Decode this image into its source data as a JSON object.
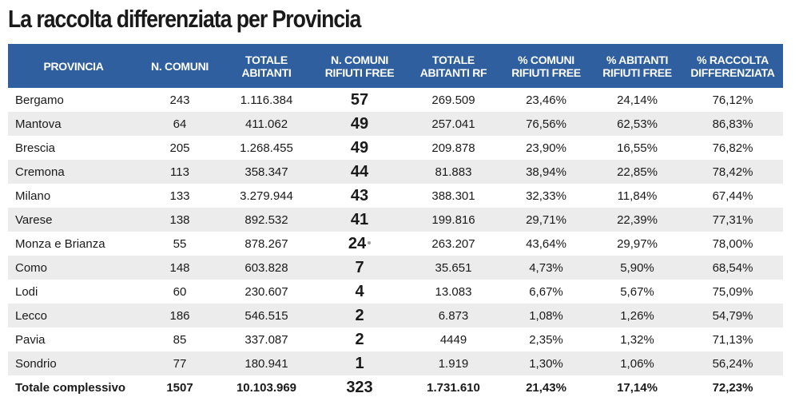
{
  "title": "La raccolta differenziata per Provincia",
  "headers": [
    "PROVINCIA",
    "N. COMUNI",
    "TOTALE\nABITANTI",
    "N. COMUNI\nRIFIUTI FREE",
    "TOTALE\nABITANTI RF",
    "% COMUNI\nRIFIUTI FREE",
    "% ABITANTI\nRIFIUTI FREE",
    "% RACCOLTA\nDIFFERENZIATA"
  ],
  "rows": [
    {
      "provincia": "Bergamo",
      "n_comuni": "243",
      "totale_abitanti": "1.116.384",
      "n_comuni_rf": "57",
      "totale_abitanti_rf": "269.509",
      "pct_comuni_rf": "23,46%",
      "pct_abitanti_rf": "24,14%",
      "pct_raccolta": "76,12%"
    },
    {
      "provincia": "Mantova",
      "n_comuni": "64",
      "totale_abitanti": "411.062",
      "n_comuni_rf": "49",
      "totale_abitanti_rf": "257.041",
      "pct_comuni_rf": "76,56%",
      "pct_abitanti_rf": "62,53%",
      "pct_raccolta": "86,83%"
    },
    {
      "provincia": "Brescia",
      "n_comuni": "205",
      "totale_abitanti": "1.268.455",
      "n_comuni_rf": "49",
      "totale_abitanti_rf": "209.878",
      "pct_comuni_rf": "23,90%",
      "pct_abitanti_rf": "16,55%",
      "pct_raccolta": "76,82%"
    },
    {
      "provincia": "Cremona",
      "n_comuni": "113",
      "totale_abitanti": "358.347",
      "n_comuni_rf": "44",
      "totale_abitanti_rf": "81.883",
      "pct_comuni_rf": "38,94%",
      "pct_abitanti_rf": "22,85%",
      "pct_raccolta": "78,42%"
    },
    {
      "provincia": "Milano",
      "n_comuni": "133",
      "totale_abitanti": "3.279.944",
      "n_comuni_rf": "43",
      "totale_abitanti_rf": "388.301",
      "pct_comuni_rf": "32,33%",
      "pct_abitanti_rf": "11,84%",
      "pct_raccolta": "67,44%"
    },
    {
      "provincia": "Varese",
      "n_comuni": "138",
      "totale_abitanti": "892.532",
      "n_comuni_rf": "41",
      "totale_abitanti_rf": "199.816",
      "pct_comuni_rf": "29,71%",
      "pct_abitanti_rf": "22,39%",
      "pct_raccolta": "77,31%"
    },
    {
      "provincia": "Monza e Brianza",
      "n_comuni": "55",
      "totale_abitanti": "878.267",
      "n_comuni_rf": "24",
      "marker": true,
      "totale_abitanti_rf": "263.207",
      "pct_comuni_rf": "43,64%",
      "pct_abitanti_rf": "29,97%",
      "pct_raccolta": "78,00%"
    },
    {
      "provincia": "Como",
      "n_comuni": "148",
      "totale_abitanti": "603.828",
      "n_comuni_rf": "7",
      "totale_abitanti_rf": "35.651",
      "pct_comuni_rf": "4,73%",
      "pct_abitanti_rf": "5,90%",
      "pct_raccolta": "68,54%"
    },
    {
      "provincia": "Lodi",
      "n_comuni": "60",
      "totale_abitanti": "230.607",
      "n_comuni_rf": "4",
      "totale_abitanti_rf": "13.083",
      "pct_comuni_rf": "6,67%",
      "pct_abitanti_rf": "5,67%",
      "pct_raccolta": "75,09%"
    },
    {
      "provincia": "Lecco",
      "n_comuni": "186",
      "totale_abitanti": "546.515",
      "n_comuni_rf": "2",
      "totale_abitanti_rf": "6.873",
      "pct_comuni_rf": "1,08%",
      "pct_abitanti_rf": "1,26%",
      "pct_raccolta": "54,79%"
    },
    {
      "provincia": "Pavia",
      "n_comuni": "85",
      "totale_abitanti": "337.087",
      "n_comuni_rf": "2",
      "totale_abitanti_rf": "4449",
      "pct_comuni_rf": "2,35%",
      "pct_abitanti_rf": "1,32%",
      "pct_raccolta": "71,13%"
    },
    {
      "provincia": "Sondrio",
      "n_comuni": "77",
      "totale_abitanti": "180.941",
      "n_comuni_rf": "1",
      "totale_abitanti_rf": "1.919",
      "pct_comuni_rf": "1,30%",
      "pct_abitanti_rf": "1,06%",
      "pct_raccolta": "56,24%"
    }
  ],
  "total": {
    "provincia": "Totale complessivo",
    "n_comuni": "1507",
    "totale_abitanti": "10.103.969",
    "n_comuni_rf": "323",
    "totale_abitanti_rf": "1.731.610",
    "pct_comuni_rf": "21,43%",
    "pct_abitanti_rf": "17,14%",
    "pct_raccolta": "72,23%"
  },
  "colors": {
    "header_bg": "#2f5f9e",
    "header_text": "#ffffff",
    "stripe": "#ececec"
  }
}
